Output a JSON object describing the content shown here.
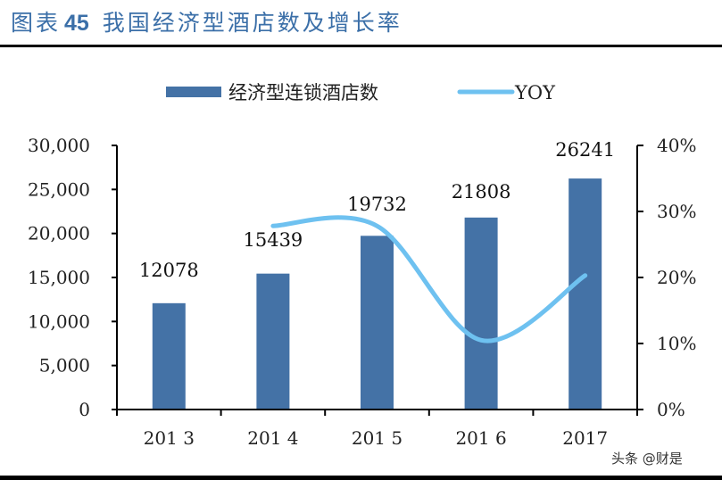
{
  "header": {
    "figure_label": "图表",
    "figure_number": "45",
    "title": "我国经济型酒店数及增长率"
  },
  "watermark": "头条 @财是",
  "colors": {
    "bar": "#4472a6",
    "line": "#6ec1f0",
    "title": "#3b6fa8",
    "axis": "#000000"
  },
  "chart_data": {
    "type": "bar+line",
    "title": "我国经济型酒店数及增长率",
    "categories": [
      "2013",
      "2014",
      "2015",
      "2016",
      "2017"
    ],
    "category_labels": [
      "201 3",
      "201 4",
      "201 5",
      "201 6",
      "2017"
    ],
    "series": [
      {
        "name": "经济型连锁酒店数",
        "type": "bar",
        "axis": "left",
        "values": [
          12078,
          15439,
          19732,
          21808,
          26241
        ],
        "data_labels": [
          "12078",
          "15439",
          "19732",
          "21808",
          "26241"
        ]
      },
      {
        "name": "YOY",
        "type": "line",
        "axis": "right",
        "smooth": true,
        "values": [
          null,
          27.8,
          27.8,
          10.5,
          20.3
        ],
        "unit": "%"
      }
    ],
    "left_axis": {
      "ylim": [
        0,
        30000
      ],
      "ticks": [
        "0",
        "5,000",
        "10,000",
        "15,000",
        "20,000",
        "25,000",
        "30,000"
      ]
    },
    "right_axis": {
      "ylim": [
        0,
        40
      ],
      "ticks": [
        "0%",
        "10%",
        "20%",
        "30%",
        "40%"
      ]
    },
    "legend": {
      "position": "top",
      "entries": [
        "经济型连锁酒店数",
        "YOY"
      ]
    },
    "grid": false
  }
}
